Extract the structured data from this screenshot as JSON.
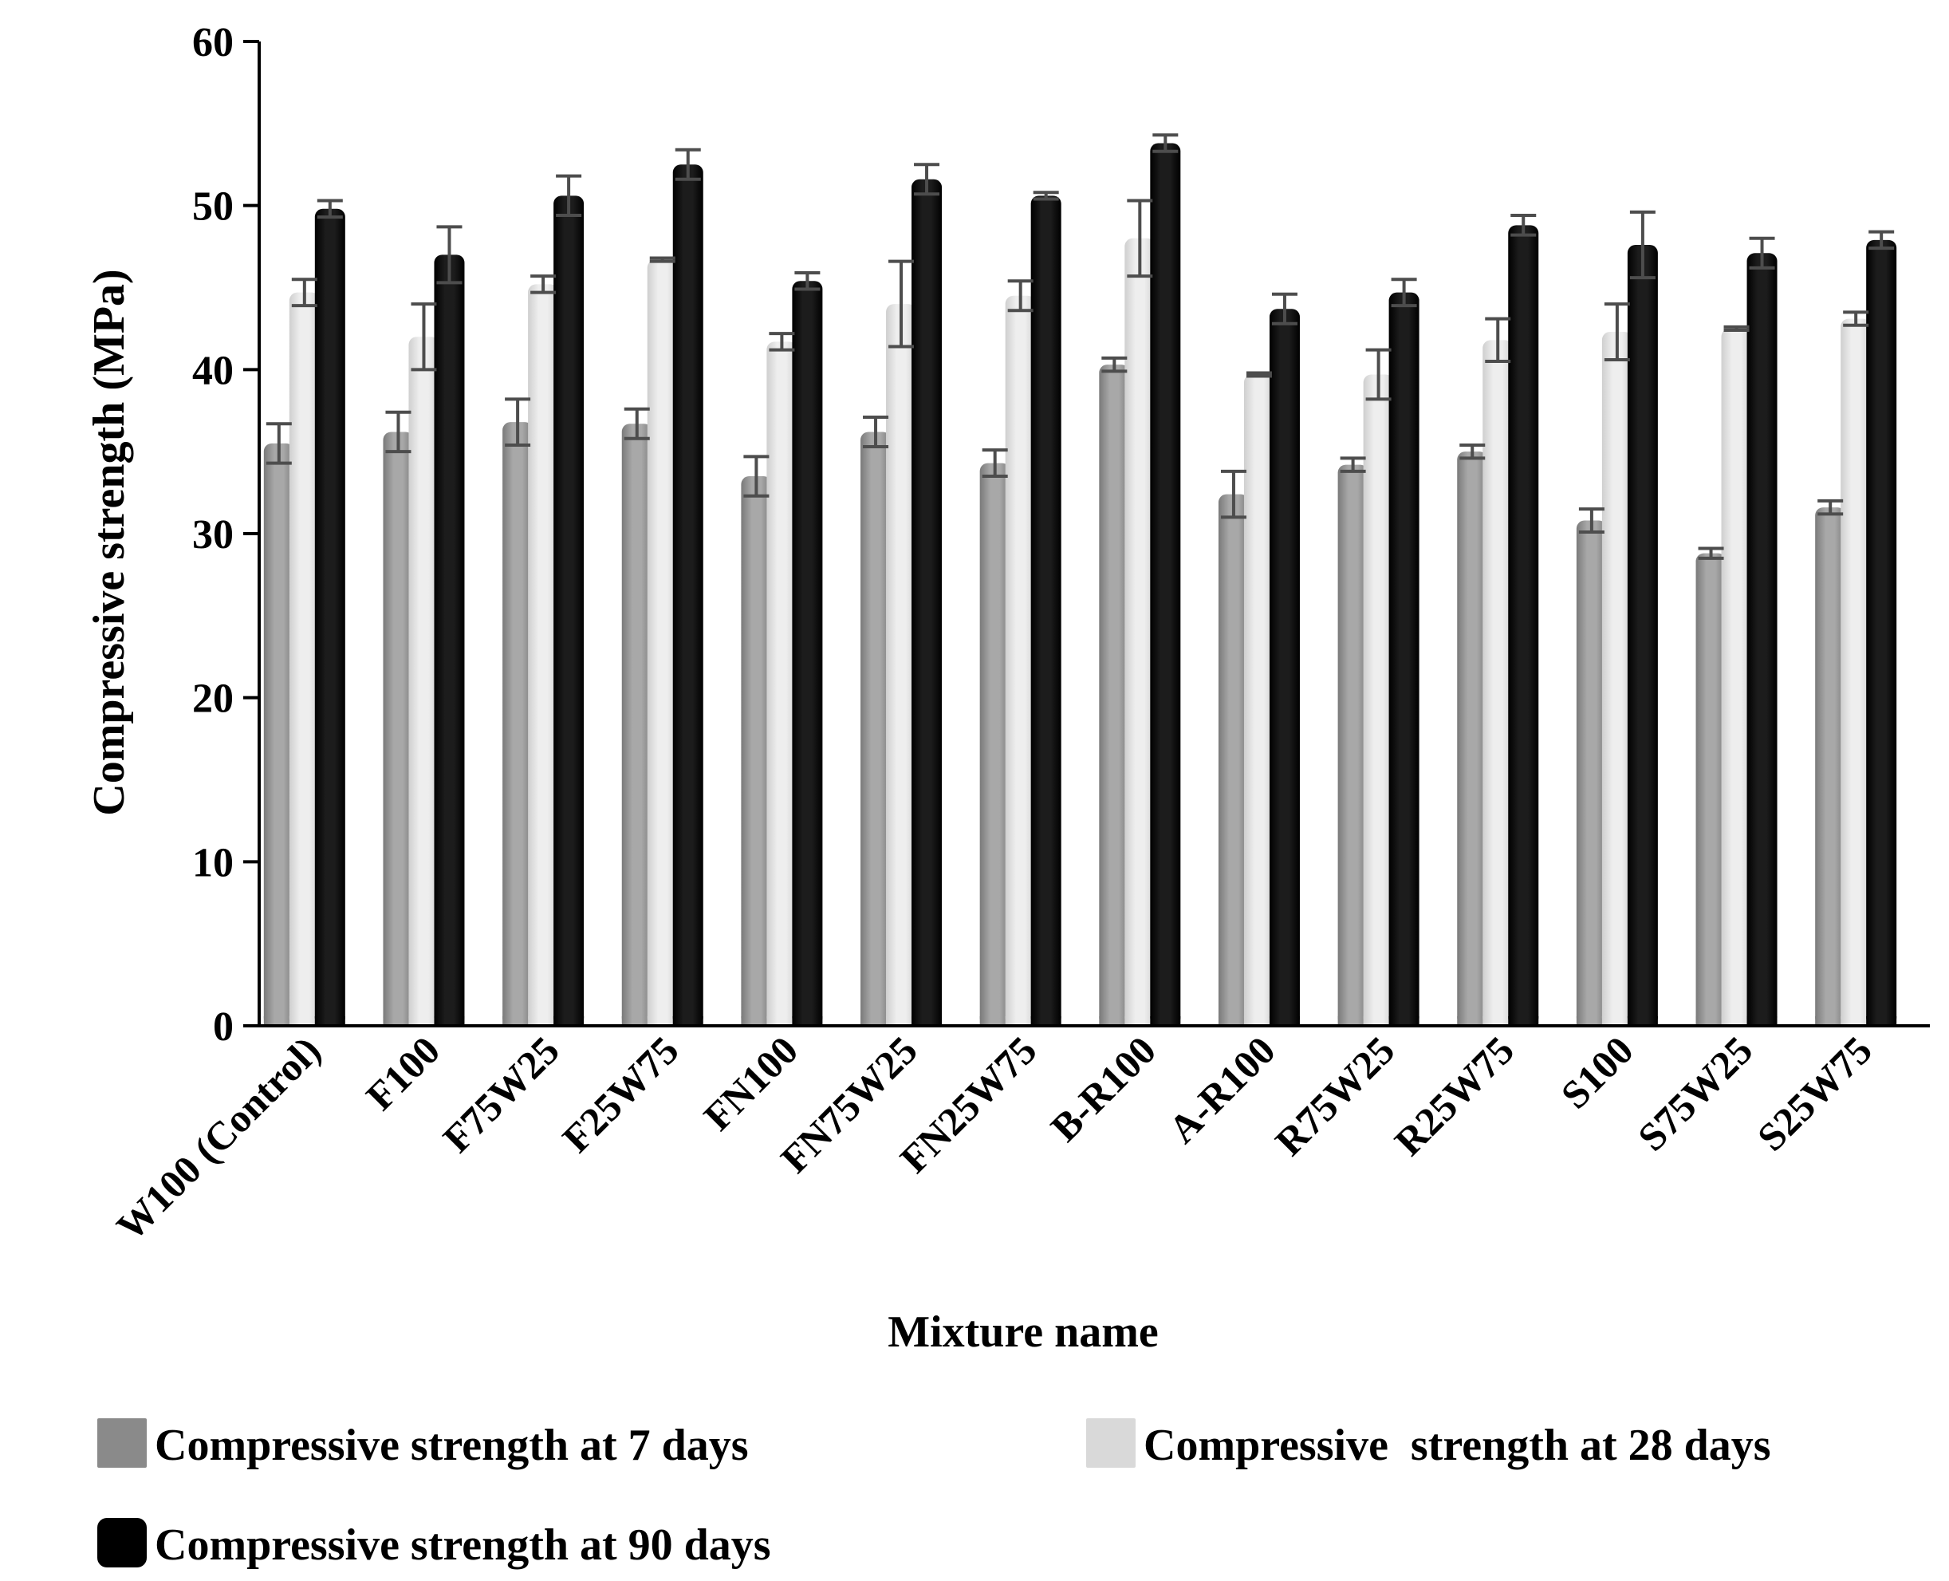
{
  "chart_data": {
    "type": "bar",
    "title": "",
    "xlabel": "Mixture name",
    "ylabel": "Compressive strength (MPa)",
    "ylim": [
      0,
      60
    ],
    "yticks": [
      0,
      10,
      20,
      30,
      40,
      50,
      60
    ],
    "grid": false,
    "legend_position": "bottom",
    "categories": [
      "W100 (Control)",
      "F100",
      "F75W25",
      "F25W75",
      "FN100",
      "FN75W25",
      "FN25W75",
      "B-R100",
      "A-R100",
      "R75W25",
      "R25W75",
      "S100",
      "S75W25",
      "S25W75"
    ],
    "series": [
      {
        "name": "Compressive strength at 7 days",
        "color": "#8a8a8a",
        "values": [
          35.5,
          36.2,
          36.8,
          36.7,
          33.5,
          36.2,
          34.3,
          40.3,
          32.4,
          34.2,
          35.0,
          30.8,
          28.8,
          31.6
        ],
        "errors": [
          1.2,
          1.2,
          1.4,
          0.9,
          1.2,
          0.9,
          0.8,
          0.4,
          1.4,
          0.4,
          0.4,
          0.7,
          0.3,
          0.4
        ]
      },
      {
        "name": "Compressive  strength at 28 days",
        "color": "#d9d9d9",
        "values": [
          44.7,
          42.0,
          45.2,
          46.7,
          41.7,
          44.0,
          44.5,
          48.0,
          39.7,
          39.7,
          41.8,
          42.3,
          42.5,
          43.1
        ],
        "errors": [
          0.8,
          2.0,
          0.5,
          0.1,
          0.5,
          2.6,
          0.9,
          2.3,
          0.1,
          1.5,
          1.3,
          1.7,
          0.1,
          0.4
        ]
      },
      {
        "name": "Compressive strength at 90 days",
        "color": "#000000",
        "values": [
          49.8,
          47.0,
          50.6,
          52.5,
          45.4,
          51.6,
          50.6,
          53.8,
          43.7,
          44.7,
          48.8,
          47.6,
          47.1,
          47.9
        ],
        "errors": [
          0.5,
          1.7,
          1.2,
          0.9,
          0.5,
          0.9,
          0.2,
          0.5,
          0.9,
          0.8,
          0.6,
          2.0,
          0.9,
          0.5
        ]
      }
    ]
  }
}
